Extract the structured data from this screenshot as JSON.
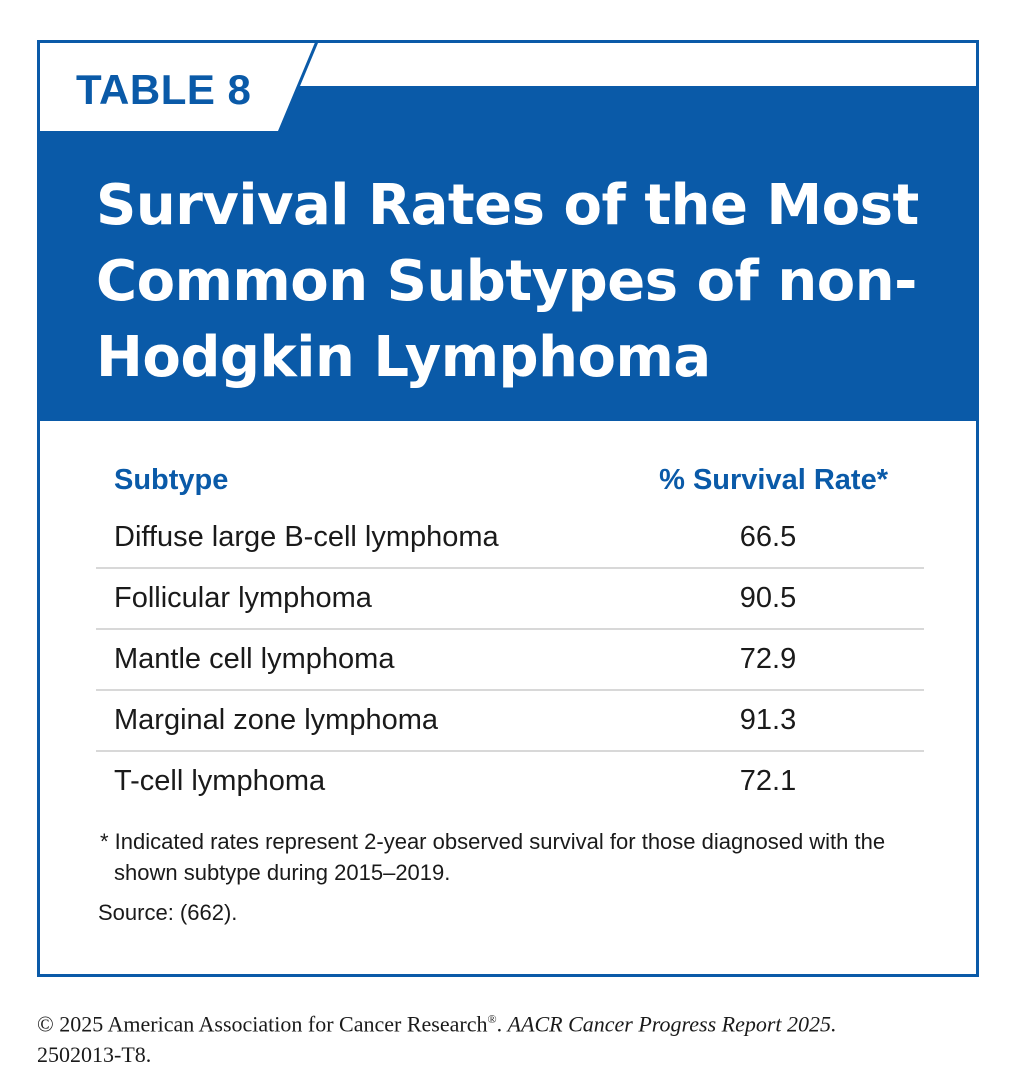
{
  "table_label": "TABLE 8",
  "title": "Survival Rates of the Most Common Subtypes of non-Hodgkin Lymphoma",
  "columns": {
    "subtype": "Subtype",
    "rate": "% Survival Rate*"
  },
  "rows": [
    {
      "subtype": "Diffuse large B-cell lymphoma",
      "rate": "66.5"
    },
    {
      "subtype": "Follicular lymphoma",
      "rate": "90.5"
    },
    {
      "subtype": "Mantle cell lymphoma",
      "rate": "72.9"
    },
    {
      "subtype": "Marginal zone lymphoma",
      "rate": "91.3"
    },
    {
      "subtype": "T-cell lymphoma",
      "rate": "72.1"
    }
  ],
  "footnote": "* Indicated rates represent 2-year observed survival for those diagnosed with the shown subtype during 2015–2019.",
  "source": "Source: (662).",
  "copyright": {
    "prefix": "© 2025 American Association for Cancer Research",
    "registered": "®",
    "middle": ". ",
    "report": "AACR Cancer Progress Report 2025.",
    "code": "2502013-T8."
  },
  "colors": {
    "brand_blue": "#0a5aa8",
    "divider": "#d8d8d8"
  }
}
